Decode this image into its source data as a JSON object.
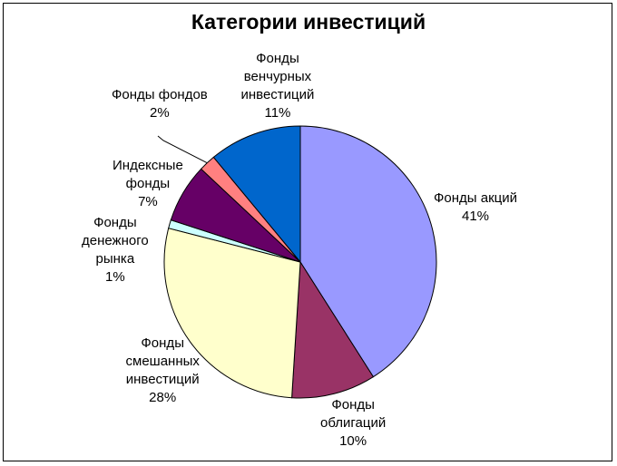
{
  "chart_data": {
    "type": "pie",
    "title": "Категории инвестиций",
    "slices": [
      {
        "label_lines": [
          "Фонды акций"
        ],
        "value": 41,
        "percent_text": "41%",
        "color": "#9999ff"
      },
      {
        "label_lines": [
          "Фонды",
          "облигаций"
        ],
        "value": 10,
        "percent_text": "10%",
        "color": "#993366"
      },
      {
        "label_lines": [
          "Фонды",
          "смешанных",
          "инвестиций"
        ],
        "value": 28,
        "percent_text": "28%",
        "color": "#ffffcc"
      },
      {
        "label_lines": [
          "Фонды",
          "денежного",
          "рынка"
        ],
        "value": 1,
        "percent_text": "1%",
        "color": "#ccffff"
      },
      {
        "label_lines": [
          "Индексные",
          "фонды"
        ],
        "value": 7,
        "percent_text": "7%",
        "color": "#660066"
      },
      {
        "label_lines": [
          "Фонды фондов"
        ],
        "value": 2,
        "percent_text": "2%",
        "color": "#ff8080"
      },
      {
        "label_lines": [
          "Фонды",
          "венчурных",
          "инвестиций"
        ],
        "value": 11,
        "percent_text": "11%",
        "color": "#0066cc"
      }
    ],
    "start": "12 o'clock",
    "direction": "clockwise",
    "legend": "none",
    "data_labels": "category and percent, outside slices"
  }
}
